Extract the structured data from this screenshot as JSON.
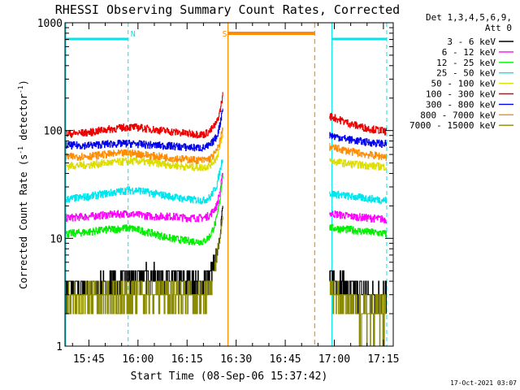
{
  "chart_data": {
    "type": "line",
    "title": "RHESSI Observing Summary Count Rates, Corrected",
    "xlabel": "Start Time (08-Sep-06 15:37:42)",
    "ylabel": "Corrected Count Rate (s",
    "ylabel_sup1": "-1",
    "ylabel_mid": " detector",
    "ylabel_sup2": "-1",
    "ylabel_end": ")",
    "yscale": "log",
    "ylim": [
      1,
      1000
    ],
    "xlim": [
      "15:37:42",
      "17:18:00"
    ],
    "y_tick_labels": [
      "1",
      "10",
      "100",
      "1000"
    ],
    "x_tick_labels": [
      "15:45",
      "16:00",
      "16:15",
      "16:30",
      "16:45",
      "17:00",
      "17:15"
    ],
    "legend": {
      "placement": "top-right",
      "header": [
        "Det 1,3,4,5,6,9,",
        "Att 0"
      ]
    },
    "timestamp": "17-Oct-2021 03:07",
    "annotations": [
      {
        "text": "N",
        "time": "15:57",
        "color": "#00e5ee"
      },
      {
        "text": "S",
        "time": "16:25",
        "color": "#ff8c00"
      }
    ],
    "night_intervals": [
      [
        "15:37:42",
        "15:57:00"
      ],
      [
        "16:59:00",
        "17:16:00"
      ]
    ],
    "saa_interval": [
      "16:27:30",
      "16:54:00"
    ],
    "gap": [
      "16:26:00",
      "16:58:30"
    ],
    "series": [
      {
        "name": "3 - 6 keV",
        "color": "#000000",
        "x": [
          "15:38",
          "15:45",
          "15:50",
          "15:57",
          "16:00",
          "16:05",
          "16:10",
          "16:15",
          "16:20",
          "16:22",
          "16:24",
          "16:25",
          "16:26",
          "16:59",
          "17:05",
          "17:10",
          "17:16"
        ],
        "values": [
          3.5,
          3.5,
          3.6,
          4.0,
          4.5,
          4.5,
          4.2,
          3.9,
          3.8,
          4.5,
          7,
          11,
          22,
          4.2,
          3.5,
          3.1,
          2.8
        ]
      },
      {
        "name": "6 - 12 keV",
        "color": "#ff00ff",
        "x": [
          "15:38",
          "15:45",
          "15:50",
          "15:57",
          "16:00",
          "16:05",
          "16:10",
          "16:15",
          "16:20",
          "16:22",
          "16:24",
          "16:25",
          "16:26",
          "16:59",
          "17:05",
          "17:10",
          "17:16"
        ],
        "values": [
          15.5,
          16,
          16.5,
          17,
          16.5,
          16,
          16,
          15.5,
          15.5,
          16.5,
          20,
          27,
          42,
          17,
          16,
          15.5,
          15
        ]
      },
      {
        "name": "12 - 25 keV",
        "color": "#00ee00",
        "x": [
          "15:38",
          "15:45",
          "15:50",
          "15:57",
          "16:00",
          "16:05",
          "16:10",
          "16:15",
          "16:20",
          "16:22",
          "16:24",
          "16:25",
          "16:26",
          "16:59",
          "17:05",
          "17:10",
          "17:16"
        ],
        "values": [
          11,
          11.5,
          12,
          12.5,
          12,
          11,
          10,
          9.5,
          9.3,
          10.5,
          15,
          23,
          44,
          12.5,
          12,
          11.5,
          11
        ]
      },
      {
        "name": "25 - 50 keV",
        "color": "#00e5ee",
        "x": [
          "15:38",
          "15:45",
          "15:50",
          "15:57",
          "16:00",
          "16:05",
          "16:10",
          "16:15",
          "16:20",
          "16:22",
          "16:24",
          "16:25",
          "16:26",
          "16:59",
          "17:05",
          "17:10",
          "17:16"
        ],
        "values": [
          23,
          24.5,
          26,
          28,
          28,
          26,
          24.5,
          23,
          22.5,
          24,
          31,
          42,
          60,
          26,
          24.5,
          23.5,
          22.5
        ]
      },
      {
        "name": "50 - 100 keV",
        "color": "#dddd00",
        "x": [
          "15:38",
          "15:45",
          "15:50",
          "15:57",
          "16:00",
          "16:05",
          "16:10",
          "16:15",
          "16:20",
          "16:22",
          "16:24",
          "16:25",
          "16:26",
          "16:59",
          "17:05",
          "17:10",
          "17:16"
        ],
        "values": [
          47,
          48,
          50,
          52,
          52,
          50,
          48,
          46,
          45.5,
          48,
          56,
          70,
          95,
          52,
          49,
          47.5,
          46
        ]
      },
      {
        "name": "100 - 300 keV",
        "color": "#ee0000",
        "x": [
          "15:38",
          "15:45",
          "15:50",
          "15:57",
          "16:00",
          "16:05",
          "16:10",
          "16:15",
          "16:20",
          "16:22",
          "16:24",
          "16:25",
          "16:26",
          "16:59",
          "17:05",
          "17:10",
          "17:16"
        ],
        "values": [
          93,
          96,
          102,
          108,
          107,
          102,
          98,
          94,
          92,
          99,
          118,
          150,
          225,
          135,
          115,
          105,
          98
        ]
      },
      {
        "name": "300 - 800 keV",
        "color": "#0000ee",
        "x": [
          "15:38",
          "15:45",
          "15:50",
          "15:57",
          "16:00",
          "16:05",
          "16:10",
          "16:15",
          "16:20",
          "16:22",
          "16:24",
          "16:25",
          "16:26",
          "16:59",
          "17:05",
          "17:10",
          "17:16"
        ],
        "values": [
          73,
          73,
          75,
          76,
          75,
          73,
          72,
          70,
          69,
          73,
          88,
          113,
          175,
          90,
          82,
          78,
          75
        ]
      },
      {
        "name": "800 - 7000 keV",
        "color": "#ff8c00",
        "x": [
          "15:38",
          "15:45",
          "15:50",
          "15:57",
          "16:00",
          "16:05",
          "16:10",
          "16:15",
          "16:20",
          "16:22",
          "16:24",
          "16:25",
          "16:26",
          "16:59",
          "17:05",
          "17:10",
          "17:16"
        ],
        "values": [
          57,
          58,
          60,
          62,
          61,
          58,
          56,
          54,
          53,
          55,
          64,
          80,
          110,
          70,
          64,
          60,
          57
        ]
      },
      {
        "name": "7000 - 15000 keV",
        "color": "#8b8b00",
        "x": [
          "15:38",
          "15:45",
          "15:50",
          "15:57",
          "16:00",
          "16:05",
          "16:10",
          "16:15",
          "16:20",
          "16:22",
          "16:24",
          "16:25",
          "16:26",
          "16:59",
          "17:05",
          "17:10",
          "17:16"
        ],
        "values": [
          2.6,
          2.7,
          2.8,
          3.0,
          3.2,
          3.1,
          3.0,
          2.9,
          2.8,
          3.5,
          6.5,
          10,
          18,
          3.2,
          2.5,
          2.0,
          2.2
        ]
      }
    ]
  }
}
